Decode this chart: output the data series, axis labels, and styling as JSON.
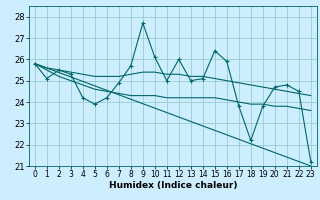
{
  "xlabel": "Humidex (Indice chaleur)",
  "bg_color": "#cceeff",
  "grid_color": "#99cccc",
  "line_color": "#006666",
  "xlim": [
    -0.5,
    23.5
  ],
  "ylim": [
    21,
    28.5
  ],
  "yticks": [
    21,
    22,
    23,
    24,
    25,
    26,
    27,
    28
  ],
  "xticks": [
    0,
    1,
    2,
    3,
    4,
    5,
    6,
    7,
    8,
    9,
    10,
    11,
    12,
    13,
    14,
    15,
    16,
    17,
    18,
    19,
    20,
    21,
    22,
    23
  ],
  "main_data": [
    25.8,
    25.1,
    25.5,
    25.3,
    24.2,
    23.9,
    24.2,
    24.9,
    25.7,
    27.7,
    26.1,
    25.0,
    26.0,
    25.0,
    25.1,
    26.4,
    25.9,
    23.8,
    22.2,
    23.8,
    24.7,
    24.8,
    24.5,
    21.2
  ],
  "smooth1": [
    25.8,
    25.6,
    25.5,
    25.4,
    25.3,
    25.2,
    25.2,
    25.2,
    25.3,
    25.4,
    25.4,
    25.3,
    25.3,
    25.2,
    25.2,
    25.1,
    25.0,
    24.9,
    24.8,
    24.7,
    24.6,
    24.5,
    24.4,
    24.3
  ],
  "smooth2": [
    25.8,
    25.5,
    25.2,
    25.0,
    24.8,
    24.6,
    24.5,
    24.4,
    24.3,
    24.3,
    24.3,
    24.2,
    24.2,
    24.2,
    24.2,
    24.2,
    24.1,
    24.0,
    23.9,
    23.9,
    23.8,
    23.8,
    23.7,
    23.6
  ],
  "trend_line_x": [
    0,
    23
  ],
  "trend_line_y": [
    25.8,
    21.0
  ]
}
